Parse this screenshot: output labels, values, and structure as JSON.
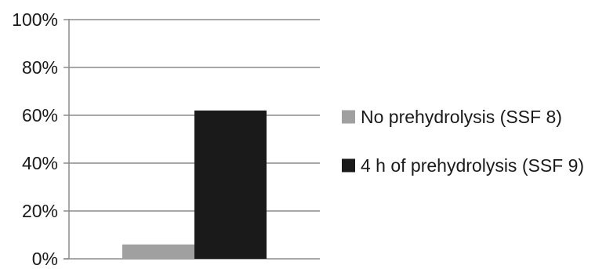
{
  "chart_data": {
    "type": "bar",
    "title": "",
    "xlabel": "",
    "ylabel": "",
    "categories": [
      ""
    ],
    "series": [
      {
        "name": "No prehydrolysis (SSF 8)",
        "values": [
          6
        ],
        "color": "#a0a0a0"
      },
      {
        "name": "4 h of prehydrolysis (SSF 9)",
        "values": [
          62
        ],
        "color": "#1a1a1a"
      }
    ],
    "ylim": [
      0,
      100
    ],
    "y_ticks": [
      {
        "value": 0,
        "label": "0%"
      },
      {
        "value": 20,
        "label": "20%"
      },
      {
        "value": 40,
        "label": "40%"
      },
      {
        "value": 60,
        "label": "60%"
      },
      {
        "value": 80,
        "label": "80%"
      },
      {
        "value": 100,
        "label": "100%"
      }
    ],
    "grid": true,
    "legend_position": "right",
    "axis_color": "#8c8c8c"
  }
}
